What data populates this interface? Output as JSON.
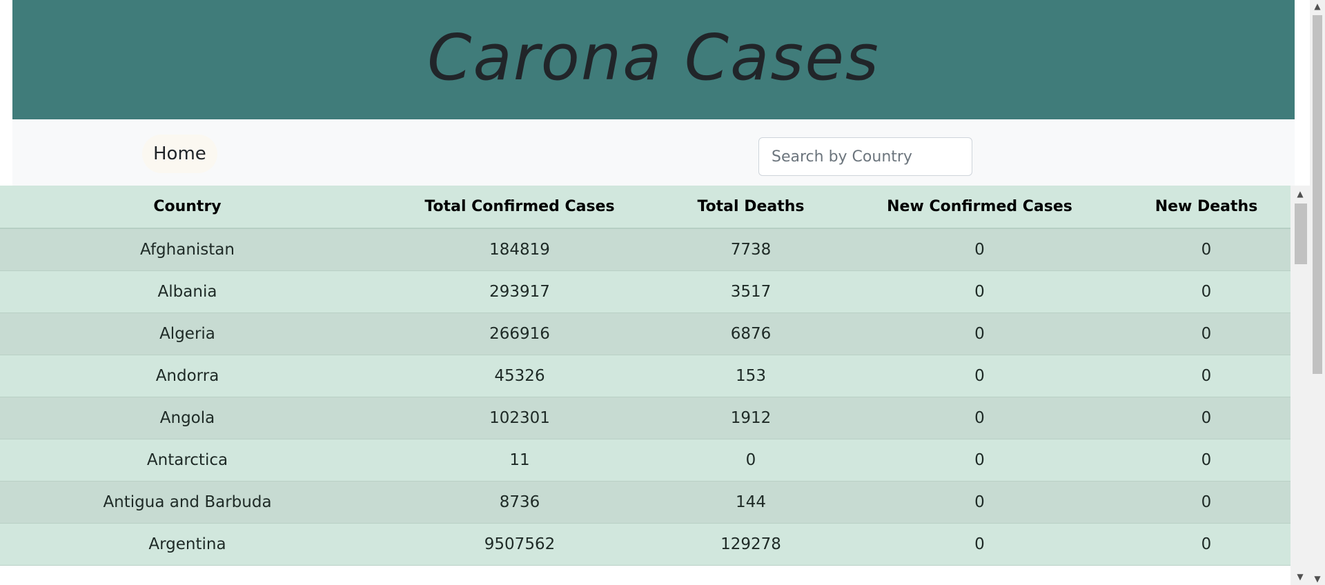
{
  "header": {
    "title": "Carona Cases"
  },
  "nav": {
    "home_label": "Home",
    "search_placeholder": "Search by Country"
  },
  "table": {
    "columns": [
      "Country",
      "Total Confirmed Cases",
      "Total Deaths",
      "New Confirmed Cases",
      "New Deaths"
    ],
    "rows": [
      [
        "Afghanistan",
        "184819",
        "7738",
        "0",
        "0"
      ],
      [
        "Albania",
        "293917",
        "3517",
        "0",
        "0"
      ],
      [
        "Algeria",
        "266916",
        "6876",
        "0",
        "0"
      ],
      [
        "Andorra",
        "45326",
        "153",
        "0",
        "0"
      ],
      [
        "Angola",
        "102301",
        "1912",
        "0",
        "0"
      ],
      [
        "Antarctica",
        "11",
        "0",
        "0",
        "0"
      ],
      [
        "Antigua and Barbuda",
        "8736",
        "144",
        "0",
        "0"
      ],
      [
        "Argentina",
        "9507562",
        "129278",
        "0",
        "0"
      ]
    ]
  },
  "colors": {
    "banner": "#407c7a",
    "row_odd": "#c7dbd2",
    "row_even": "#d1e7dd",
    "navbar": "#f8f9fa"
  },
  "icons": {
    "scroll_up": "scroll-up-arrow-icon",
    "scroll_down": "scroll-down-arrow-icon"
  }
}
